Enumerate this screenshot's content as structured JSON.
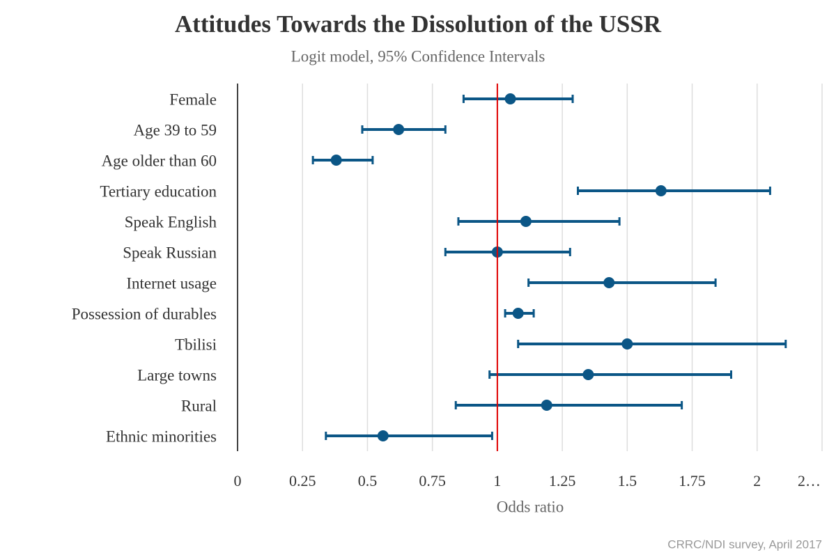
{
  "chart_data": {
    "type": "forest",
    "title": "Attitudes Towards the Dissolution of the USSR",
    "subtitle": "Logit model, 95% Confidence Intervals",
    "x_label": "Odds ratio",
    "caption": "CRRC/NDI survey, April 2017",
    "categories": [
      "Female",
      "Age 39 to 59",
      "Age older than 60",
      "Tertiary education",
      "Speak English",
      "Speak Russian",
      "Internet usage",
      "Possession of durables",
      "Tbilisi",
      "Large towns",
      "Rural",
      "Ethnic minorities"
    ],
    "series": [
      {
        "color": "#0b5686",
        "values": [
          1.05,
          0.62,
          0.38,
          1.63,
          1.11,
          1.0,
          1.43,
          1.08,
          1.5,
          1.35,
          1.19,
          0.56
        ],
        "lower": [
          0.87,
          0.48,
          0.29,
          1.31,
          0.85,
          0.8,
          1.12,
          1.03,
          1.08,
          0.97,
          0.84,
          0.34
        ],
        "upper": [
          1.29,
          0.8,
          0.52,
          2.05,
          1.47,
          1.28,
          1.84,
          1.14,
          2.11,
          1.9,
          1.71,
          0.98
        ]
      }
    ],
    "reference_line": {
      "value": 1,
      "color": "#e00000"
    },
    "xlim": [
      0,
      2.25
    ],
    "xticks": [
      0,
      0.25,
      0.5,
      0.75,
      1,
      1.25,
      1.5,
      1.75,
      2,
      {
        "value": 2.25,
        "label": "2…"
      }
    ],
    "grid": true
  }
}
